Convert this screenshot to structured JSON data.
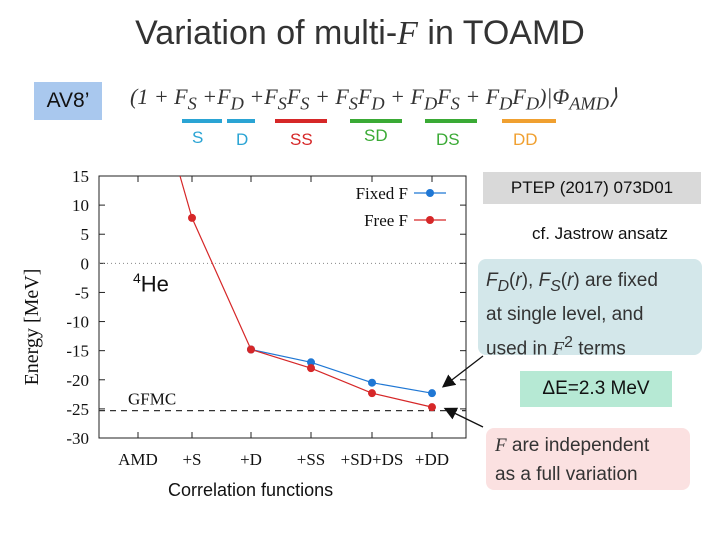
{
  "slide": {
    "title_pre": "Variation of multi-",
    "title_f": "F",
    "title_post": " in TOAMD",
    "av8_label": "AV8’",
    "formula": "(1 + F_S + F_D + F_S F_S + F_S F_D + F_D F_S + F_D F_D)|Φ_AMD⟩",
    "terms": [
      {
        "label": "S",
        "color": "#2aa4d4"
      },
      {
        "label": "D",
        "color": "#2aa4d4"
      },
      {
        "label": "SS",
        "color": "#d62728"
      },
      {
        "label": "SD",
        "color": "#3aaa35"
      },
      {
        "label": "DS",
        "color": "#3aaa35"
      },
      {
        "label": "DD",
        "color": "#f0a030"
      }
    ],
    "ref": "PTEP (2017) 073D01",
    "cf": "cf. Jastrow ansatz",
    "fixed_line1": "F_D(r), F_S(r) are fixed",
    "fixed_line2": "at single level, and",
    "fixed_line3_pre": "used in ",
    "fixed_line3_mid": "F",
    "fixed_line3_post": " terms",
    "de_text": "ΔE=2.3 MeV",
    "indep_line1_f": "F",
    "indep_line1_post": " are independent",
    "indep_line2": "as a full variation",
    "nucleus": "He",
    "nucleus_mass": "4"
  },
  "chart_data": {
    "type": "line",
    "categories": [
      "AMD",
      "+S",
      "+D",
      "+SS",
      "+SD+DS",
      "+DD"
    ],
    "xlabel": "Correlation functions",
    "ylabel": "Energy [MeV]",
    "ylim": [
      -30,
      15
    ],
    "yticks": [
      15,
      10,
      5,
      0,
      -5,
      -10,
      -15,
      -20,
      -25,
      -30
    ],
    "legend_position": "top-right",
    "series": [
      {
        "name": "Fixed F",
        "color": "#1f77d4",
        "values": [
          null,
          null,
          -14.8,
          -17.0,
          -20.5,
          -22.3
        ]
      },
      {
        "name": "Free F",
        "color": "#d62728",
        "values": [
          null,
          7.8,
          -14.8,
          -18.0,
          -22.3,
          -24.7
        ]
      }
    ],
    "first_segment_from": 15,
    "reference_line": {
      "label": "GFMC",
      "value": -25.3
    },
    "zero_line": true
  }
}
